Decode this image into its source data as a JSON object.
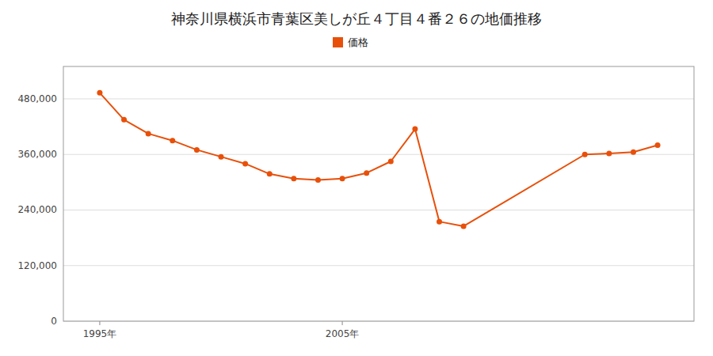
{
  "chart_data": {
    "type": "line",
    "title": "神奈川県横浜市青葉区美しが丘４丁目４番２６の地価推移",
    "x": [
      1995,
      1996,
      1997,
      1998,
      1999,
      2000,
      2001,
      2002,
      2003,
      2004,
      2005,
      2006,
      2007,
      2008,
      2009,
      2010,
      2015,
      2016,
      2017,
      2018
    ],
    "series": [
      {
        "name": "価格",
        "color": "#e8500a",
        "marker": "circle",
        "values": [
          493000,
          435000,
          405000,
          390000,
          370000,
          355000,
          340000,
          318000,
          308000,
          305000,
          308000,
          320000,
          345000,
          415000,
          215000,
          205000,
          360000,
          362000,
          365000,
          380000
        ]
      }
    ],
    "xlim": [
      1993.5,
      2019.5
    ],
    "xticks": [
      {
        "value": 1995,
        "label": "1995年"
      },
      {
        "value": 2005,
        "label": "2005年"
      }
    ],
    "ylim": [
      0,
      550000
    ],
    "yticks": [
      0,
      {
        "value": 120000,
        "label": "120,000"
      },
      {
        "value": 240000,
        "label": "240,000"
      },
      {
        "value": 360000,
        "label": "360,000"
      },
      {
        "value": 480000,
        "label": "480,000"
      }
    ],
    "grid": true,
    "legend": "top"
  }
}
